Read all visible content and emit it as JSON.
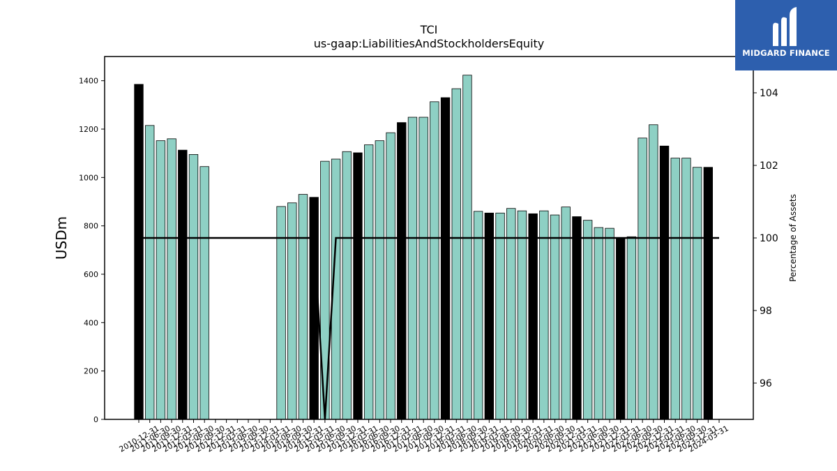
{
  "brand": {
    "name": "MIDGARD FINANCE",
    "bg_color": "#2d5fae"
  },
  "chart_data": {
    "type": "bar",
    "title": "TCI",
    "subtitle": "us-gaap:LiabilitiesAndStockholdersEquity",
    "ylabel": "USDm",
    "ylabel_right": "Percentage of Assets",
    "ylim": [
      0,
      1500
    ],
    "ylim_right": [
      95,
      105
    ],
    "yticks": [
      0,
      200,
      400,
      600,
      800,
      1000,
      1200,
      1400
    ],
    "yticks_right": [
      96,
      98,
      100,
      102,
      104
    ],
    "colors": {
      "bar": "#8ed0c4",
      "bar_q4": "#000000",
      "line": "#000000"
    },
    "grid": false,
    "categories": [
      "2010-12-31",
      "2011-03-31",
      "2011-06-30",
      "2011-09-30",
      "2011-12-31",
      "2012-03-31",
      "2012-06-30",
      "2012-09-30",
      "2012-12-31",
      "2013-03-31",
      "2013-06-30",
      "2013-09-30",
      "2013-12-31",
      "2014-03-31",
      "2014-06-30",
      "2014-09-30",
      "2014-12-31",
      "2015-03-31",
      "2015-06-30",
      "2015-09-30",
      "2015-12-31",
      "2016-03-31",
      "2016-06-30",
      "2016-09-30",
      "2016-12-31",
      "2017-03-31",
      "2017-06-30",
      "2017-09-30",
      "2017-12-31",
      "2018-03-31",
      "2018-06-30",
      "2018-09-30",
      "2018-12-31",
      "2019-03-31",
      "2019-06-30",
      "2019-09-30",
      "2019-12-31",
      "2020-03-31",
      "2020-06-30",
      "2020-09-30",
      "2020-12-31",
      "2021-03-31",
      "2021-06-30",
      "2021-09-30",
      "2021-12-31",
      "2022-03-31",
      "2022-06-30",
      "2022-09-30",
      "2022-12-31",
      "2023-03-31",
      "2023-06-30",
      "2023-09-30",
      "2023-12-31",
      "2024-03-31"
    ],
    "xtick_labels": [
      "2010-12-31",
      "2011-06-30",
      "2011-09-30",
      "2011-12-31",
      "2012-03-31",
      "2012-06-30",
      "2012-09-30",
      "2012-12-31",
      "2013-03-31",
      "2013-06-30",
      "2013-09-30",
      "2013-12-31",
      "2014-03-31",
      "2014-06-30",
      "2014-09-30",
      "2014-12-31",
      "2015-03-31",
      "2015-06-30",
      "2015-09-30",
      "2015-12-31",
      "2016-03-31",
      "2016-06-30",
      "2016-09-30",
      "2016-12-31",
      "2017-03-31",
      "2017-06-30",
      "2017-09-30",
      "2017-12-31",
      "2018-03-31",
      "2018-06-30",
      "2018-09-30",
      "2018-12-31",
      "2019-03-31",
      "2019-06-30",
      "2019-09-30",
      "2019-12-31",
      "2020-03-31",
      "2020-06-30",
      "2020-09-30",
      "2020-12-31",
      "2021-03-31",
      "2021-06-30",
      "2021-09-30",
      "2021-12-31",
      "2022-03-31",
      "2022-06-30",
      "2022-09-30",
      "2022-12-31",
      "2023-03-31",
      "2023-06-30",
      "2023-09-30",
      "2023-12-31",
      "2024-03-31"
    ],
    "series": [
      {
        "values": [
          1385,
          1215,
          1152,
          1160,
          1113,
          1095,
          1045,
          null,
          null,
          null,
          null,
          null,
          null,
          880,
          895,
          930,
          918,
          1067,
          1076,
          1107,
          1102,
          1135,
          1152,
          1185,
          1227,
          1249,
          1249,
          1313,
          1330,
          1367,
          1423,
          860,
          853,
          853,
          872,
          862,
          850,
          862,
          845,
          878,
          838,
          823,
          793,
          790,
          748,
          755,
          1163,
          1218,
          1130,
          1080,
          1080,
          1042,
          1042,
          null
        ]
      },
      {
        "values": [
          100,
          100,
          100,
          100,
          100,
          100,
          100,
          100,
          100,
          100,
          100,
          100,
          100,
          100,
          100,
          100,
          100,
          null,
          100,
          100,
          100,
          100,
          100,
          100,
          100,
          100,
          100,
          100,
          100,
          100,
          100,
          100,
          100,
          100,
          100,
          100,
          100,
          100,
          100,
          100,
          100,
          100,
          100,
          100,
          100,
          100,
          100,
          100,
          100,
          100,
          100,
          100,
          100,
          100
        ]
      }
    ]
  }
}
